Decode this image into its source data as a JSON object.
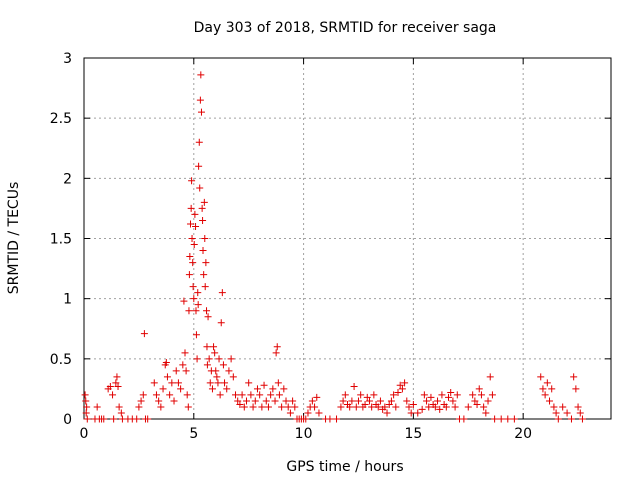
{
  "chart_data": {
    "type": "scatter",
    "title": "Day 303 of 2018, SRMTID for receiver saga",
    "xlabel": "GPS time / hours",
    "ylabel": "SRMTID / TECUs",
    "xlim": [
      0,
      24
    ],
    "ylim": [
      0,
      3
    ],
    "xticks": [
      0,
      5,
      10,
      15,
      20
    ],
    "xtick_labels": [
      "0",
      "5",
      "10",
      "15",
      "20"
    ],
    "yticks": [
      0,
      0.5,
      1,
      1.5,
      2,
      2.5,
      3
    ],
    "ytick_labels": [
      "0",
      "0.5",
      "1",
      "1.5",
      "2",
      "2.5",
      "3"
    ],
    "grid": true,
    "marker": "+",
    "color": "#e00000",
    "series": [
      {
        "name": "SRMTID",
        "points": [
          [
            0.05,
            0.2
          ],
          [
            0.08,
            0.15
          ],
          [
            0.1,
            0.05
          ],
          [
            0.12,
            0.1
          ],
          [
            0.15,
            0.0
          ],
          [
            0.5,
            0.0
          ],
          [
            0.6,
            0.1
          ],
          [
            0.7,
            0.0
          ],
          [
            0.8,
            0.0
          ],
          [
            0.9,
            0.0
          ],
          [
            1.1,
            0.25
          ],
          [
            1.2,
            0.27
          ],
          [
            1.3,
            0.2
          ],
          [
            1.35,
            0.0
          ],
          [
            1.45,
            0.3
          ],
          [
            1.5,
            0.35
          ],
          [
            1.55,
            0.27
          ],
          [
            1.6,
            0.1
          ],
          [
            1.7,
            0.05
          ],
          [
            1.75,
            0.0
          ],
          [
            2.0,
            0.0
          ],
          [
            2.2,
            0.0
          ],
          [
            2.4,
            0.0
          ],
          [
            2.5,
            0.1
          ],
          [
            2.6,
            0.15
          ],
          [
            2.7,
            0.2
          ],
          [
            2.75,
            0.71
          ],
          [
            2.8,
            0.0
          ],
          [
            2.9,
            0.0
          ],
          [
            3.2,
            0.3
          ],
          [
            3.3,
            0.2
          ],
          [
            3.4,
            0.15
          ],
          [
            3.5,
            0.1
          ],
          [
            3.6,
            0.25
          ],
          [
            3.7,
            0.45
          ],
          [
            3.75,
            0.47
          ],
          [
            3.8,
            0.35
          ],
          [
            3.9,
            0.2
          ],
          [
            4.0,
            0.3
          ],
          [
            4.1,
            0.15
          ],
          [
            4.2,
            0.4
          ],
          [
            4.3,
            0.3
          ],
          [
            4.4,
            0.25
          ],
          [
            4.5,
            0.45
          ],
          [
            4.55,
            0.98
          ],
          [
            4.6,
            0.55
          ],
          [
            4.65,
            0.4
          ],
          [
            4.7,
            0.2
          ],
          [
            4.75,
            0.1
          ],
          [
            4.78,
            0.9
          ],
          [
            4.8,
            1.2
          ],
          [
            4.82,
            1.35
          ],
          [
            4.85,
            1.62
          ],
          [
            4.88,
            1.75
          ],
          [
            4.9,
            1.98
          ],
          [
            4.92,
            1.5
          ],
          [
            4.95,
            1.3
          ],
          [
            4.97,
            1.1
          ],
          [
            5.0,
            1.0
          ],
          [
            5.02,
            1.45
          ],
          [
            5.05,
            1.7
          ],
          [
            5.08,
            1.6
          ],
          [
            5.1,
            0.9
          ],
          [
            5.12,
            0.7
          ],
          [
            5.15,
            0.5
          ],
          [
            5.18,
            1.05
          ],
          [
            5.2,
            0.95
          ],
          [
            5.22,
            2.1
          ],
          [
            5.25,
            2.3
          ],
          [
            5.27,
            1.92
          ],
          [
            5.3,
            2.65
          ],
          [
            5.32,
            2.86
          ],
          [
            5.35,
            2.55
          ],
          [
            5.38,
            1.75
          ],
          [
            5.4,
            1.65
          ],
          [
            5.42,
            1.4
          ],
          [
            5.45,
            1.2
          ],
          [
            5.48,
            1.8
          ],
          [
            5.5,
            1.5
          ],
          [
            5.52,
            1.1
          ],
          [
            5.55,
            1.3
          ],
          [
            5.58,
            0.9
          ],
          [
            5.6,
            0.6
          ],
          [
            5.62,
            0.45
          ],
          [
            5.65,
            0.85
          ],
          [
            5.7,
            0.5
          ],
          [
            5.75,
            0.3
          ],
          [
            5.8,
            0.4
          ],
          [
            5.85,
            0.25
          ],
          [
            5.9,
            0.6
          ],
          [
            5.95,
            0.55
          ],
          [
            6.0,
            0.4
          ],
          [
            6.05,
            0.35
          ],
          [
            6.1,
            0.3
          ],
          [
            6.15,
            0.5
          ],
          [
            6.2,
            0.2
          ],
          [
            6.25,
            0.8
          ],
          [
            6.3,
            1.05
          ],
          [
            6.35,
            0.45
          ],
          [
            6.4,
            0.3
          ],
          [
            6.5,
            0.25
          ],
          [
            6.6,
            0.4
          ],
          [
            6.7,
            0.5
          ],
          [
            6.8,
            0.35
          ],
          [
            6.9,
            0.2
          ],
          [
            7.0,
            0.15
          ],
          [
            7.1,
            0.12
          ],
          [
            7.2,
            0.2
          ],
          [
            7.3,
            0.1
          ],
          [
            7.4,
            0.15
          ],
          [
            7.5,
            0.3
          ],
          [
            7.6,
            0.2
          ],
          [
            7.7,
            0.1
          ],
          [
            7.8,
            0.15
          ],
          [
            7.9,
            0.25
          ],
          [
            8.0,
            0.2
          ],
          [
            8.1,
            0.1
          ],
          [
            8.2,
            0.28
          ],
          [
            8.3,
            0.15
          ],
          [
            8.4,
            0.1
          ],
          [
            8.5,
            0.2
          ],
          [
            8.6,
            0.25
          ],
          [
            8.7,
            0.15
          ],
          [
            8.75,
            0.55
          ],
          [
            8.8,
            0.6
          ],
          [
            8.85,
            0.3
          ],
          [
            8.9,
            0.2
          ],
          [
            9.0,
            0.1
          ],
          [
            9.1,
            0.25
          ],
          [
            9.2,
            0.15
          ],
          [
            9.3,
            0.1
          ],
          [
            9.4,
            0.05
          ],
          [
            9.5,
            0.15
          ],
          [
            9.6,
            0.1
          ],
          [
            9.7,
            0.0
          ],
          [
            9.8,
            0.0
          ],
          [
            9.9,
            0.0
          ],
          [
            10.0,
            0.0
          ],
          [
            10.1,
            0.0
          ],
          [
            10.2,
            0.05
          ],
          [
            10.3,
            0.1
          ],
          [
            10.4,
            0.15
          ],
          [
            10.5,
            0.1
          ],
          [
            10.6,
            0.18
          ],
          [
            10.7,
            0.05
          ],
          [
            11.0,
            0.0
          ],
          [
            11.2,
            0.0
          ],
          [
            11.5,
            0.0
          ],
          [
            11.7,
            0.1
          ],
          [
            11.8,
            0.15
          ],
          [
            11.9,
            0.2
          ],
          [
            12.0,
            0.12
          ],
          [
            12.1,
            0.1
          ],
          [
            12.2,
            0.15
          ],
          [
            12.3,
            0.27
          ],
          [
            12.4,
            0.1
          ],
          [
            12.5,
            0.15
          ],
          [
            12.6,
            0.2
          ],
          [
            12.7,
            0.1
          ],
          [
            12.8,
            0.12
          ],
          [
            12.9,
            0.18
          ],
          [
            13.0,
            0.15
          ],
          [
            13.1,
            0.1
          ],
          [
            13.2,
            0.2
          ],
          [
            13.3,
            0.12
          ],
          [
            13.4,
            0.1
          ],
          [
            13.5,
            0.15
          ],
          [
            13.6,
            0.08
          ],
          [
            13.7,
            0.1
          ],
          [
            13.8,
            0.05
          ],
          [
            13.9,
            0.12
          ],
          [
            14.0,
            0.15
          ],
          [
            14.1,
            0.2
          ],
          [
            14.2,
            0.1
          ],
          [
            14.3,
            0.22
          ],
          [
            14.4,
            0.28
          ],
          [
            14.5,
            0.25
          ],
          [
            14.6,
            0.3
          ],
          [
            14.7,
            0.15
          ],
          [
            14.8,
            0.1
          ],
          [
            14.9,
            0.05
          ],
          [
            15.0,
            0.12
          ],
          [
            15.2,
            0.05
          ],
          [
            15.4,
            0.08
          ],
          [
            15.5,
            0.2
          ],
          [
            15.6,
            0.15
          ],
          [
            15.7,
            0.1
          ],
          [
            15.8,
            0.18
          ],
          [
            15.9,
            0.12
          ],
          [
            16.0,
            0.1
          ],
          [
            16.1,
            0.15
          ],
          [
            16.2,
            0.08
          ],
          [
            16.3,
            0.2
          ],
          [
            16.4,
            0.12
          ],
          [
            16.5,
            0.1
          ],
          [
            16.6,
            0.18
          ],
          [
            16.7,
            0.22
          ],
          [
            16.8,
            0.15
          ],
          [
            16.9,
            0.1
          ],
          [
            17.0,
            0.2
          ],
          [
            17.1,
            0.0
          ],
          [
            17.3,
            0.0
          ],
          [
            17.5,
            0.1
          ],
          [
            17.7,
            0.2
          ],
          [
            17.8,
            0.15
          ],
          [
            17.9,
            0.12
          ],
          [
            18.0,
            0.25
          ],
          [
            18.1,
            0.2
          ],
          [
            18.2,
            0.1
          ],
          [
            18.3,
            0.05
          ],
          [
            18.4,
            0.15
          ],
          [
            18.5,
            0.35
          ],
          [
            18.6,
            0.2
          ],
          [
            18.7,
            0.0
          ],
          [
            19.0,
            0.0
          ],
          [
            19.3,
            0.0
          ],
          [
            19.6,
            0.0
          ],
          [
            20.8,
            0.35
          ],
          [
            20.9,
            0.25
          ],
          [
            21.0,
            0.2
          ],
          [
            21.1,
            0.3
          ],
          [
            21.2,
            0.15
          ],
          [
            21.3,
            0.25
          ],
          [
            21.4,
            0.1
          ],
          [
            21.5,
            0.05
          ],
          [
            21.6,
            0.0
          ],
          [
            21.8,
            0.1
          ],
          [
            22.0,
            0.05
          ],
          [
            22.2,
            0.0
          ],
          [
            22.3,
            0.35
          ],
          [
            22.4,
            0.25
          ],
          [
            22.5,
            0.1
          ],
          [
            22.6,
            0.05
          ],
          [
            22.7,
            0.0
          ]
        ]
      }
    ]
  }
}
